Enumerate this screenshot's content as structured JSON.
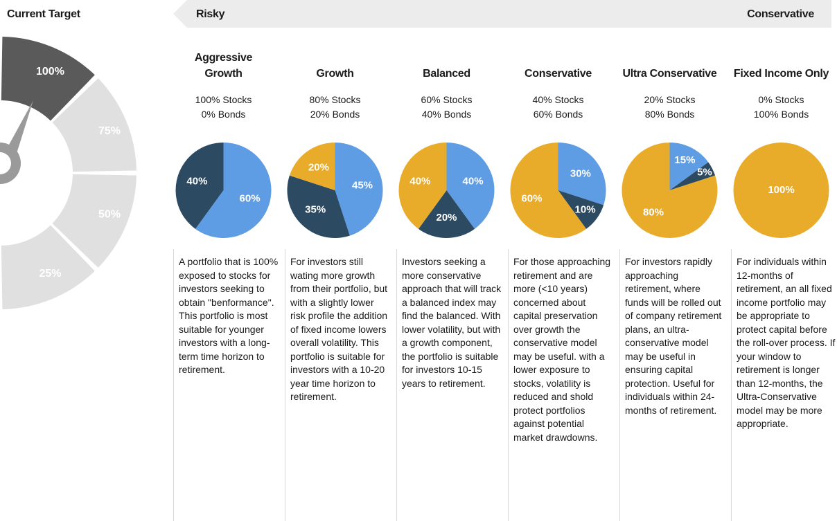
{
  "header": {
    "current_target": "Current Target",
    "left": "Risky",
    "right": "Conservative"
  },
  "gauge": {
    "labels": [
      "100%",
      "75%",
      "50%",
      "25%"
    ]
  },
  "portfolios": [
    {
      "title": "Aggressive Growth",
      "stocks": "100% Stocks",
      "bonds": "0% Bonds",
      "description": "A portfolio that is 100% exposed to stocks for investors seeking to obtain \"benformance\". This portfolio is most suitable for younger investors with a long-term time horizon to retirement."
    },
    {
      "title": "Growth",
      "stocks": "80% Stocks",
      "bonds": "20% Bonds",
      "description": "For investors still wating more growth from their portfolio, but with a slightly lower risk profile the addition of fixed income lowers overall volatility. This portfolio is suitable for investors with a 10-20 year time horizon to retirement."
    },
    {
      "title": "Balanced",
      "stocks": "60% Stocks",
      "bonds": "40% Bonds",
      "description": "Investors seeking a more conservative approach that will track a balanced index may find the balanced. With lower volatility, but with a growth component, the portfolio is suitable for investors 10-15 years to retirement."
    },
    {
      "title": "Conservative",
      "stocks": "40% Stocks",
      "bonds": "60% Bonds",
      "description": "For those approaching retirement and are more (<10 years) concerned about capital preservation over growth the conservative model may be useful. with a lower exposure to stocks, volatility is reduced and shold protect portfolios against potential market drawdowns."
    },
    {
      "title": "Ultra Conservative",
      "stocks": "20% Stocks",
      "bonds": "80% Bonds",
      "description": "For investors rapidly approaching retirement, where funds will be rolled out of company retirement plans, an ultra-conservative model may be useful in ensuring capital protection. Useful for individuals within 24-months of retirement."
    },
    {
      "title": "Fixed Income Only",
      "stocks": "0% Stocks",
      "bonds": "100% Bonds",
      "description": "For individuals within 12-months of retirement, an all fixed income portfolio may be appropriate to protect capital before the roll-over process. If your window to retirement is longer than 12-months, the Ultra-Conservative model may be more appropriate."
    }
  ],
  "chart_data": [
    {
      "type": "pie",
      "values": [
        60,
        40
      ],
      "value_labels": [
        "60%",
        "40%"
      ],
      "colors": [
        "#5e9de3",
        "#2c4a62"
      ]
    },
    {
      "type": "pie",
      "values": [
        45,
        35,
        20
      ],
      "value_labels": [
        "45%",
        "35%",
        "20%"
      ],
      "colors": [
        "#5e9de3",
        "#2c4a62",
        "#e8ac2a"
      ]
    },
    {
      "type": "pie",
      "values": [
        40,
        20,
        40
      ],
      "value_labels": [
        "40%",
        "20%",
        "40%"
      ],
      "colors": [
        "#5e9de3",
        "#2c4a62",
        "#e8ac2a"
      ]
    },
    {
      "type": "pie",
      "values": [
        30,
        10,
        60
      ],
      "value_labels": [
        "30%",
        "10%",
        "60%"
      ],
      "colors": [
        "#5e9de3",
        "#2c4a62",
        "#e8ac2a"
      ]
    },
    {
      "type": "pie",
      "values": [
        15,
        5,
        80
      ],
      "value_labels": [
        "15%",
        "5%",
        "80%"
      ],
      "colors": [
        "#5e9de3",
        "#2c4a62",
        "#e8ac2a"
      ]
    },
    {
      "type": "pie",
      "values": [
        100
      ],
      "value_labels": [
        "100%"
      ],
      "colors": [
        "#e8ac2a"
      ]
    }
  ]
}
